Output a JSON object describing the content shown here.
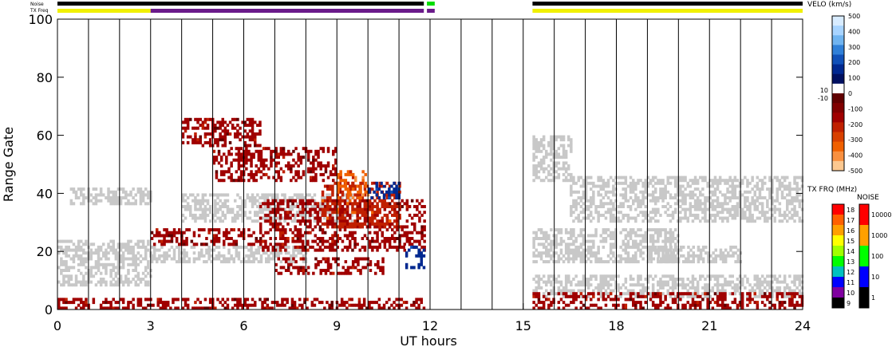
{
  "chart_data": {
    "type": "heatmap",
    "title": "",
    "xlabel": "UT hours",
    "ylabel": "Range Gate",
    "xlim": [
      0,
      24
    ],
    "ylim": [
      0,
      100
    ],
    "x_ticks": [
      "0",
      "3",
      "6",
      "9",
      "12",
      "15",
      "18",
      "21",
      "24"
    ],
    "y_ticks": [
      "0",
      "20",
      "40",
      "60",
      "80",
      "100"
    ],
    "hour_gridlines": [
      1,
      2,
      3,
      4,
      5,
      6,
      7,
      8,
      9,
      10,
      11,
      12,
      13,
      14,
      15,
      16,
      17,
      18,
      19,
      20,
      21,
      22,
      23
    ],
    "data_gap": [
      11.9,
      15.2
    ],
    "ground_scatter_color": "#c8c8c8",
    "top_bars": {
      "noise_label": "Noise",
      "txfreq_label": "TX Freq",
      "noise_segments": [
        {
          "start": 0,
          "end": 11.8,
          "color": "#000000"
        },
        {
          "start": 11.9,
          "end": 12.15,
          "color": "#00dd00"
        },
        {
          "start": 15.3,
          "end": 24,
          "color": "#000000"
        }
      ],
      "txfreq_segments": [
        {
          "start": 0,
          "end": 3.0,
          "color": "#f0f000"
        },
        {
          "start": 3.0,
          "end": 11.8,
          "color": "#6a1a8a"
        },
        {
          "start": 11.9,
          "end": 12.15,
          "color": "#6a1a8a"
        },
        {
          "start": 15.3,
          "end": 24,
          "color": "#f0f000"
        }
      ]
    },
    "scatter_regions": [
      {
        "kind": "ground",
        "t0": 0.0,
        "t1": 3.0,
        "g0": 8,
        "g1": 24
      },
      {
        "kind": "ground",
        "t0": 0.4,
        "t1": 3.0,
        "g0": 36,
        "g1": 42
      },
      {
        "kind": "ground",
        "t0": 3.0,
        "t1": 8.0,
        "g0": 16,
        "g1": 22
      },
      {
        "kind": "ground",
        "t0": 4.0,
        "t1": 9.5,
        "g0": 30,
        "g1": 40
      },
      {
        "kind": "ground",
        "t0": 15.3,
        "t1": 16.5,
        "g0": 44,
        "g1": 60
      },
      {
        "kind": "ground",
        "t0": 16.5,
        "t1": 24.0,
        "g0": 30,
        "g1": 46
      },
      {
        "kind": "ground",
        "t0": 15.3,
        "t1": 20.0,
        "g0": 16,
        "g1": 28
      },
      {
        "kind": "ground",
        "t0": 19.0,
        "t1": 22.0,
        "g0": 16,
        "g1": 22
      },
      {
        "kind": "ground",
        "t0": 15.3,
        "t1": 24.0,
        "g0": 4,
        "g1": 12
      },
      {
        "kind": "velocity",
        "value": -150,
        "t0": 3.0,
        "t1": 6.5,
        "g0": 22,
        "g1": 28
      },
      {
        "kind": "velocity",
        "value": -150,
        "t0": 4.0,
        "t1": 6.5,
        "g0": 56,
        "g1": 66
      },
      {
        "kind": "velocity",
        "value": -150,
        "t0": 6.5,
        "t1": 11.8,
        "g0": 20,
        "g1": 38
      },
      {
        "kind": "velocity",
        "value": -250,
        "t0": 8.5,
        "t1": 11.0,
        "g0": 28,
        "g1": 44
      },
      {
        "kind": "velocity",
        "value": -150,
        "t0": 7.0,
        "t1": 10.5,
        "g0": 12,
        "g1": 18
      },
      {
        "kind": "velocity",
        "value": -350,
        "t0": 9.0,
        "t1": 10.0,
        "g0": 38,
        "g1": 48
      },
      {
        "kind": "velocity",
        "value": 150,
        "t0": 10.0,
        "t1": 11.0,
        "g0": 38,
        "g1": 44
      },
      {
        "kind": "velocity",
        "value": 150,
        "t0": 11.2,
        "t1": 11.8,
        "g0": 14,
        "g1": 22
      },
      {
        "kind": "velocity",
        "value": -150,
        "t0": 5.0,
        "t1": 9.0,
        "g0": 44,
        "g1": 56
      },
      {
        "kind": "velocity",
        "value": -150,
        "t0": 0.0,
        "t1": 11.8,
        "g0": 0,
        "g1": 4
      },
      {
        "kind": "velocity",
        "value": -150,
        "t0": 15.3,
        "t1": 24.0,
        "g0": 0,
        "g1": 6
      }
    ],
    "colorbars": {
      "velocity": {
        "title": "VELO (km/s)",
        "ticks": [
          "500",
          "400",
          "300",
          "200",
          "100",
          "0",
          "-100",
          "-200",
          "-300",
          "-400",
          "-500"
        ],
        "side_labels": [
          "10",
          "-10"
        ],
        "colors": [
          "#d8ecff",
          "#a8d4ff",
          "#70b4f0",
          "#3080d8",
          "#1050b8",
          "#002890",
          "#001060",
          "#ffffff",
          "#600000",
          "#800000",
          "#a00000",
          "#c02000",
          "#d84000",
          "#f06000",
          "#f89040",
          "#fcc890"
        ]
      },
      "txfreq": {
        "title": "TX FRQ (MHz)",
        "ticks": [
          "18",
          "17",
          "16",
          "15",
          "14",
          "13",
          "12",
          "11",
          "10",
          "9"
        ],
        "colors": [
          "#ff0000",
          "#ff6000",
          "#ffa000",
          "#ffff00",
          "#a0ff00",
          "#00ff00",
          "#00c0c0",
          "#0000ff",
          "#8000a0",
          "#000000"
        ]
      },
      "noise": {
        "title": "NOISE",
        "ticks": [
          "10000",
          "1000",
          "100",
          "10",
          "1"
        ],
        "colors": [
          "#ff0000",
          "#ffa000",
          "#00ff00",
          "#0000ff",
          "#000000"
        ]
      }
    }
  }
}
